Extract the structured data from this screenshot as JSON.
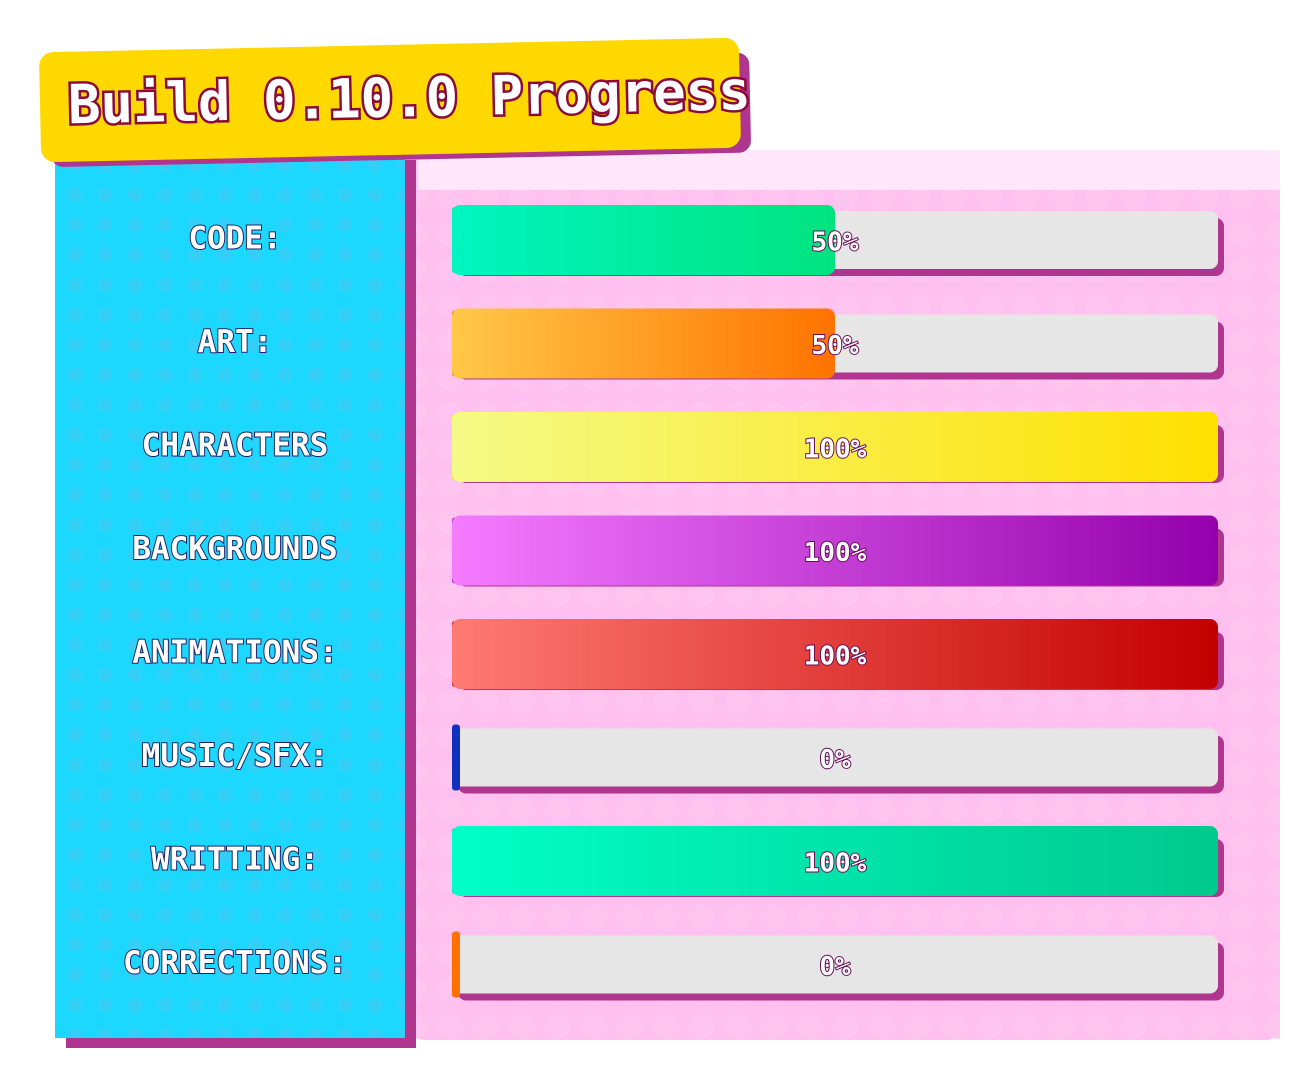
{
  "title": "Build 0.10.0 Progress",
  "rows": [
    {
      "label": "CODE:",
      "value": 50,
      "value_label": "50%",
      "colors": [
        "#00f5c0",
        "#00e37f"
      ]
    },
    {
      "label": "ART:",
      "value": 50,
      "value_label": "50%",
      "colors": [
        "#ffc848",
        "#ff7300"
      ]
    },
    {
      "label": "CHARACTERS",
      "value": 100,
      "value_label": "100%",
      "colors": [
        "#f4fa86",
        "#ffe000"
      ]
    },
    {
      "label": "BACKGROUNDS",
      "value": 100,
      "value_label": "100%",
      "colors": [
        "#f47cff",
        "#9400ac"
      ]
    },
    {
      "label": "ANIMATIONS:",
      "value": 100,
      "value_label": "100%",
      "colors": [
        "#ff7a72",
        "#c20000"
      ]
    },
    {
      "label": "MUSIC/SFX:",
      "value": 0,
      "value_label": "0%",
      "colors": [
        "#2f5bff",
        "#1030c0"
      ]
    },
    {
      "label": "WRITTING:",
      "value": 100,
      "value_label": "100%",
      "colors": [
        "#00ffc8",
        "#00c98c"
      ]
    },
    {
      "label": "CORRECTIONS:",
      "value": 0,
      "value_label": "0%",
      "colors": [
        "#ffa820",
        "#ff7000"
      ]
    }
  ]
}
